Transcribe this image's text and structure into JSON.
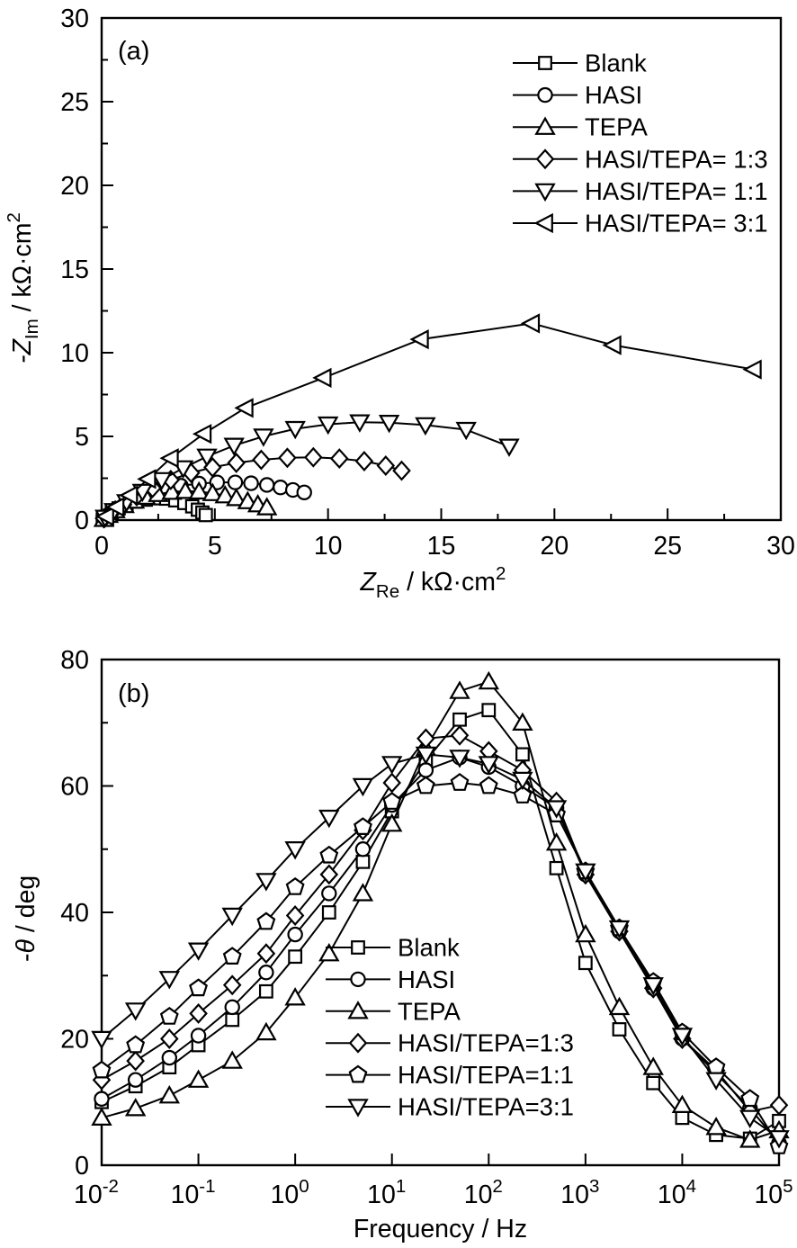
{
  "page": {
    "background": "#ffffff",
    "line_color": "#000000",
    "marker_fill": "#ffffff"
  },
  "chart_data": [
    {
      "type": "scatter",
      "panel_tag": "(a)",
      "xscale": "linear",
      "xlim": [
        0,
        30
      ],
      "ylim": [
        0,
        30
      ],
      "xticks": [
        0,
        5,
        10,
        15,
        20,
        25,
        30
      ],
      "yticks": [
        0,
        5,
        10,
        15,
        20,
        25,
        30
      ],
      "x_minor_step": 2.5,
      "y_minor_step": 2.5,
      "xlabel_segments": [
        {
          "t": "Z",
          "i": 1
        },
        {
          "t": "Re",
          "sub": 1
        },
        {
          "t": " / kΩ·cm"
        },
        {
          "t": "2",
          "sup": 1
        }
      ],
      "ylabel_segments": [
        {
          "t": "-",
          "i": 1
        },
        {
          "t": "Z",
          "i": 1
        },
        {
          "t": "Im",
          "sub": 1
        },
        {
          "t": " / kΩ·cm"
        },
        {
          "t": "2",
          "sup": 1
        }
      ],
      "grid": false,
      "legend_position": "upper-right",
      "series": [
        {
          "name": "Blank",
          "legend_label": "Blank",
          "marker": "square",
          "points": [
            [
              0.05,
              0.03
            ],
            [
              0.2,
              0.2
            ],
            [
              0.45,
              0.45
            ],
            [
              0.75,
              0.7
            ],
            [
              1.1,
              0.92
            ],
            [
              1.5,
              1.1
            ],
            [
              1.95,
              1.22
            ],
            [
              2.4,
              1.3
            ],
            [
              2.85,
              1.28
            ],
            [
              3.25,
              1.18
            ],
            [
              3.65,
              1.02
            ],
            [
              4.0,
              0.82
            ],
            [
              4.25,
              0.62
            ],
            [
              4.45,
              0.45
            ],
            [
              4.6,
              0.3
            ]
          ]
        },
        {
          "name": "HASI",
          "legend_label": "HASI",
          "marker": "circle",
          "points": [
            [
              0.1,
              0.07
            ],
            [
              0.35,
              0.35
            ],
            [
              0.7,
              0.68
            ],
            [
              1.1,
              1.0
            ],
            [
              1.6,
              1.35
            ],
            [
              2.15,
              1.63
            ],
            [
              2.8,
              1.87
            ],
            [
              3.5,
              2.05
            ],
            [
              4.3,
              2.18
            ],
            [
              5.1,
              2.25
            ],
            [
              5.9,
              2.25
            ],
            [
              6.6,
              2.2
            ],
            [
              7.3,
              2.1
            ],
            [
              7.9,
              1.95
            ],
            [
              8.45,
              1.8
            ],
            [
              8.95,
              1.65
            ]
          ]
        },
        {
          "name": "TEPA",
          "legend_label": "TEPA",
          "marker": "triangle-up",
          "points": [
            [
              0.1,
              0.06
            ],
            [
              0.3,
              0.3
            ],
            [
              0.6,
              0.58
            ],
            [
              1.0,
              0.88
            ],
            [
              1.45,
              1.15
            ],
            [
              1.95,
              1.38
            ],
            [
              2.5,
              1.55
            ],
            [
              3.1,
              1.68
            ],
            [
              3.7,
              1.73
            ],
            [
              4.3,
              1.7
            ],
            [
              4.9,
              1.6
            ],
            [
              5.45,
              1.47
            ],
            [
              5.95,
              1.3
            ],
            [
              6.45,
              1.12
            ],
            [
              6.9,
              0.93
            ],
            [
              7.3,
              0.75
            ]
          ]
        },
        {
          "name": "HASI/TEPA= 1:3",
          "legend_label": "HASI/TEPA= 1:3",
          "marker": "diamond",
          "points": [
            [
              0.1,
              0.1
            ],
            [
              0.45,
              0.45
            ],
            [
              0.95,
              0.92
            ],
            [
              1.55,
              1.42
            ],
            [
              2.25,
              1.92
            ],
            [
              3.05,
              2.4
            ],
            [
              3.95,
              2.82
            ],
            [
              4.9,
              3.15
            ],
            [
              5.95,
              3.42
            ],
            [
              7.05,
              3.6
            ],
            [
              8.2,
              3.72
            ],
            [
              9.35,
              3.75
            ],
            [
              10.5,
              3.68
            ],
            [
              11.6,
              3.52
            ],
            [
              12.55,
              3.25
            ],
            [
              13.25,
              2.95
            ]
          ]
        },
        {
          "name": "HASI/TEPA= 1:1",
          "legend_label": "HASI/TEPA= 1:1",
          "marker": "triangle-down",
          "points": [
            [
              0.15,
              0.15
            ],
            [
              0.55,
              0.55
            ],
            [
              1.1,
              1.08
            ],
            [
              1.8,
              1.7
            ],
            [
              2.65,
              2.4
            ],
            [
              3.6,
              3.1
            ],
            [
              4.65,
              3.8
            ],
            [
              5.85,
              4.45
            ],
            [
              7.15,
              5.0
            ],
            [
              8.55,
              5.45
            ],
            [
              10.0,
              5.72
            ],
            [
              11.4,
              5.85
            ],
            [
              12.7,
              5.82
            ],
            [
              14.3,
              5.68
            ],
            [
              16.1,
              5.4
            ],
            [
              18.0,
              4.4
            ]
          ]
        },
        {
          "name": "HASI/TEPA= 3:1",
          "legend_label": "HASI/TEPA= 3:1",
          "marker": "triangle-left",
          "points": [
            [
              0.2,
              0.22
            ],
            [
              0.65,
              0.78
            ],
            [
              1.25,
              1.48
            ],
            [
              2.05,
              2.45
            ],
            [
              3.05,
              3.7
            ],
            [
              4.5,
              5.15
            ],
            [
              6.35,
              6.7
            ],
            [
              9.8,
              8.5
            ],
            [
              14.1,
              10.8
            ],
            [
              19.0,
              11.75
            ],
            [
              22.6,
              10.45
            ],
            [
              28.8,
              9.0
            ]
          ]
        }
      ]
    },
    {
      "type": "scatter",
      "panel_tag": "(b)",
      "xscale": "log",
      "xlim_log": [
        -2,
        5
      ],
      "ylim": [
        0,
        80
      ],
      "xtick_exponents": [
        -2,
        -1,
        0,
        1,
        2,
        3,
        4,
        5
      ],
      "yticks": [
        0,
        20,
        40,
        60,
        80
      ],
      "y_minor_step": 10,
      "xlabel_segments": [
        {
          "t": "Frequency / Hz"
        }
      ],
      "ylabel_segments": [
        {
          "t": "-"
        },
        {
          "t": "θ",
          "i": 1
        },
        {
          "t": " / deg"
        }
      ],
      "grid": false,
      "legend_position": "center-bottom",
      "x_log": [
        -2,
        -1.65,
        -1.3,
        -1,
        -0.65,
        -0.3,
        0,
        0.35,
        0.7,
        1,
        1.35,
        1.7,
        2,
        2.35,
        2.7,
        3,
        3.35,
        3.7,
        4,
        4.35,
        4.7,
        5
      ],
      "series": [
        {
          "name": "Blank",
          "legend_label": "Blank",
          "marker": "square",
          "values": [
            10,
            12.5,
            15.5,
            19,
            23,
            27.5,
            33,
            40,
            48,
            56,
            64,
            70.5,
            72,
            65,
            47,
            32,
            21.5,
            13,
            7.5,
            4.8,
            4.2,
            7
          ]
        },
        {
          "name": "HASI",
          "legend_label": "HASI",
          "marker": "circle",
          "values": [
            10.5,
            13.5,
            17,
            20.5,
            25,
            30.5,
            36.5,
            43,
            50,
            57,
            62.5,
            64.5,
            63,
            60,
            56.5,
            46,
            37,
            28,
            20,
            14.5,
            9,
            3.5
          ]
        },
        {
          "name": "TEPA",
          "legend_label": "TEPA",
          "marker": "triangle-up",
          "values": [
            7.5,
            9,
            11,
            13.5,
            16.5,
            21,
            26.5,
            33.5,
            43,
            54,
            66,
            75,
            76.5,
            70,
            51,
            36.5,
            25,
            15.5,
            9.5,
            6,
            4,
            5.5
          ]
        },
        {
          "name": "HASI/TEPA=1:3",
          "legend_label": "HASI/TEPA=1:3",
          "marker": "diamond",
          "values": [
            13.5,
            16.5,
            20,
            24,
            28.5,
            33.5,
            39.5,
            46,
            53,
            60.5,
            67.5,
            68,
            65.5,
            62.5,
            57.5,
            46,
            37,
            28,
            20,
            15,
            8.5,
            9.5
          ]
        },
        {
          "name": "HASI/TEPA=1:1",
          "legend_label": "HASI/TEPA=1:1",
          "marker": "pentagon",
          "values": [
            15,
            19,
            23.5,
            28,
            33,
            38.5,
            44,
            49,
            53.5,
            57.5,
            60,
            60.5,
            60,
            58.5,
            55.5,
            46.5,
            37.5,
            29,
            21,
            15.5,
            10.5,
            3
          ]
        },
        {
          "name": "HASI/TEPA=3:1",
          "legend_label": "HASI/TEPA=3:1",
          "marker": "triangle-down",
          "values": [
            20,
            24.5,
            29.5,
            34,
            39.5,
            45,
            50,
            55,
            60,
            63.5,
            65,
            64.5,
            63.5,
            61,
            56.5,
            46.5,
            37.5,
            28.5,
            20.5,
            13.5,
            7.5,
            4.3
          ]
        }
      ]
    }
  ]
}
